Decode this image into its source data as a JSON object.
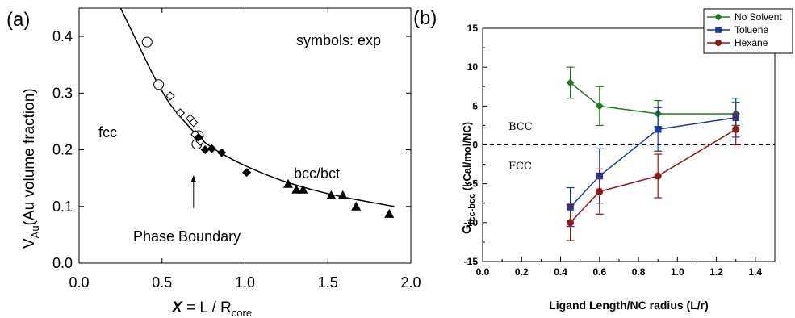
{
  "chart_data": [
    {
      "panel_label": "(a)",
      "type": "scatter",
      "ylabel_main": "V",
      "ylabel_sub": "Au",
      "ylabel_rest": "(Au volume fraction)",
      "xlabel_var": "X",
      "xlabel_eq": " =  L / R",
      "xlabel_sub": "core",
      "xlim": [
        0.0,
        2.0
      ],
      "ylim": [
        0.0,
        0.45
      ],
      "xticks": [
        "0.0",
        "0.5",
        "1.0",
        "1.5",
        "2.0"
      ],
      "yticks": [
        "0.0",
        "0.1",
        "0.2",
        "0.3",
        "0.4"
      ],
      "annotations": {
        "symbols": "symbols: exp",
        "fcc": "fcc",
        "bcc": "bcc/bct",
        "phase": "Phase Boundary"
      },
      "arrow": {
        "x": 0.69,
        "y_from": 0.097,
        "y_to": 0.155
      },
      "series": [
        {
          "marker": "circle-open",
          "points": [
            [
              0.41,
              0.39
            ],
            [
              0.48,
              0.315
            ],
            [
              0.71,
              0.21
            ],
            [
              0.72,
              0.225
            ]
          ]
        },
        {
          "marker": "diamond-open",
          "points": [
            [
              0.55,
              0.295
            ],
            [
              0.61,
              0.265
            ],
            [
              0.67,
              0.255
            ],
            [
              0.69,
              0.248
            ],
            [
              0.7,
              0.227
            ],
            [
              0.73,
              0.215
            ]
          ]
        },
        {
          "marker": "diamond-filled",
          "points": [
            [
              0.72,
              0.222
            ],
            [
              0.76,
              0.2
            ],
            [
              0.8,
              0.202
            ],
            [
              0.86,
              0.195
            ],
            [
              1.01,
              0.16
            ]
          ]
        },
        {
          "marker": "triangle-filled",
          "points": [
            [
              1.26,
              0.14
            ],
            [
              1.31,
              0.13
            ],
            [
              1.35,
              0.13
            ],
            [
              1.52,
              0.12
            ],
            [
              1.59,
              0.12
            ],
            [
              1.67,
              0.1
            ],
            [
              1.87,
              0.087
            ]
          ]
        }
      ],
      "fit_curve": [
        [
          0.25,
          0.45
        ],
        [
          0.35,
          0.39
        ],
        [
          0.45,
          0.33
        ],
        [
          0.55,
          0.28
        ],
        [
          0.65,
          0.245
        ],
        [
          0.75,
          0.215
        ],
        [
          0.85,
          0.195
        ],
        [
          1.0,
          0.172
        ],
        [
          1.2,
          0.148
        ],
        [
          1.4,
          0.13
        ],
        [
          1.6,
          0.116
        ],
        [
          1.9,
          0.1
        ]
      ]
    },
    {
      "panel_label": "(b)",
      "type": "line",
      "ylabel_main": "G",
      "ylabel_sub": "fcc-bcc",
      "ylabel_rest": " (kCal/mol/NC)",
      "xlabel": "Ligand Length/NC radius (L/r)",
      "xlim": [
        0.0,
        1.5
      ],
      "ylim": [
        -15,
        15
      ],
      "xticks": [
        "0.0",
        "0.2",
        "0.4",
        "0.6",
        "0.8",
        "1.0",
        "1.2",
        "1.4"
      ],
      "yticks": [
        "15",
        "10",
        "5",
        "0",
        "-5",
        "-10",
        "-15"
      ],
      "region_labels": {
        "above": "BCC",
        "below": "FCC"
      },
      "x": [
        0.45,
        0.6,
        0.9,
        1.3
      ],
      "series": [
        {
          "name": "No Solvent",
          "color": "#1f7a1f",
          "marker": "diamond",
          "values": [
            8,
            5,
            4,
            4
          ],
          "err": [
            2.0,
            2.5,
            1.7,
            1.5
          ]
        },
        {
          "name": "Toluene",
          "color": "#1a3a9e",
          "marker": "square",
          "values": [
            -8,
            -4,
            2,
            3.5
          ],
          "err": [
            2.5,
            3.5,
            2.8,
            2.5
          ]
        },
        {
          "name": "Hexane",
          "color": "#8b1a1a",
          "marker": "circle",
          "values": [
            -10,
            -6,
            -4,
            2
          ],
          "err": [
            2.3,
            2.9,
            2.8,
            2.0
          ]
        }
      ],
      "legend_position": "top-right",
      "zero_line": "dashed"
    }
  ]
}
